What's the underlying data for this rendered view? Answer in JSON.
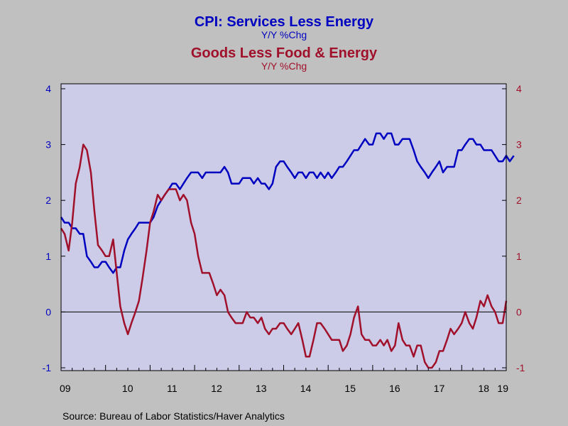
{
  "chart_data": {
    "type": "line",
    "title": "CPI: Services Less Energy",
    "subtitle": "Y/Y %Chg",
    "title2": "Goods Less Food & Energy",
    "subtitle2": "Y/Y %Chg",
    "x_tick_labels": [
      "09",
      "10",
      "11",
      "12",
      "13",
      "14",
      "15",
      "16",
      "17",
      "18",
      "19"
    ],
    "x_range": [
      2009.0,
      2019.0
    ],
    "ylim_left": [
      -1,
      4
    ],
    "ylim_right": [
      -1,
      4
    ],
    "y_ticks": [
      -1,
      0,
      1,
      2,
      3,
      4
    ],
    "zero_line": true,
    "grid": false,
    "colors": {
      "services": "#0000c0",
      "goods": "#a0102a",
      "background": "#c0c0c0",
      "plot_background": "#cccce8"
    },
    "series": [
      {
        "name": "CPI: Services Less Energy",
        "axis": "left",
        "points": [
          [
            2009.0,
            1.7
          ],
          [
            2009.08,
            1.6
          ],
          [
            2009.17,
            1.6
          ],
          [
            2009.25,
            1.5
          ],
          [
            2009.33,
            1.5
          ],
          [
            2009.42,
            1.4
          ],
          [
            2009.5,
            1.4
          ],
          [
            2009.58,
            1.0
          ],
          [
            2009.67,
            0.9
          ],
          [
            2009.75,
            0.8
          ],
          [
            2009.83,
            0.8
          ],
          [
            2009.92,
            0.9
          ],
          [
            2010.0,
            0.9
          ],
          [
            2010.08,
            0.8
          ],
          [
            2010.17,
            0.7
          ],
          [
            2010.25,
            0.8
          ],
          [
            2010.33,
            0.8
          ],
          [
            2010.42,
            1.1
          ],
          [
            2010.5,
            1.3
          ],
          [
            2010.58,
            1.4
          ],
          [
            2010.67,
            1.5
          ],
          [
            2010.75,
            1.6
          ],
          [
            2010.83,
            1.6
          ],
          [
            2010.92,
            1.6
          ],
          [
            2011.0,
            1.6
          ],
          [
            2011.08,
            1.7
          ],
          [
            2011.17,
            1.9
          ],
          [
            2011.25,
            2.0
          ],
          [
            2011.33,
            2.1
          ],
          [
            2011.42,
            2.2
          ],
          [
            2011.5,
            2.3
          ],
          [
            2011.58,
            2.3
          ],
          [
            2011.67,
            2.2
          ],
          [
            2011.75,
            2.3
          ],
          [
            2011.83,
            2.4
          ],
          [
            2011.92,
            2.5
          ],
          [
            2012.0,
            2.5
          ],
          [
            2012.08,
            2.5
          ],
          [
            2012.17,
            2.4
          ],
          [
            2012.25,
            2.5
          ],
          [
            2012.33,
            2.5
          ],
          [
            2012.42,
            2.5
          ],
          [
            2012.5,
            2.5
          ],
          [
            2012.58,
            2.5
          ],
          [
            2012.67,
            2.6
          ],
          [
            2012.75,
            2.5
          ],
          [
            2012.83,
            2.3
          ],
          [
            2012.92,
            2.3
          ],
          [
            2013.0,
            2.3
          ],
          [
            2013.08,
            2.4
          ],
          [
            2013.17,
            2.4
          ],
          [
            2013.25,
            2.4
          ],
          [
            2013.33,
            2.3
          ],
          [
            2013.42,
            2.4
          ],
          [
            2013.5,
            2.3
          ],
          [
            2013.58,
            2.3
          ],
          [
            2013.67,
            2.2
          ],
          [
            2013.75,
            2.3
          ],
          [
            2013.83,
            2.6
          ],
          [
            2013.92,
            2.7
          ],
          [
            2014.0,
            2.7
          ],
          [
            2014.08,
            2.6
          ],
          [
            2014.17,
            2.5
          ],
          [
            2014.25,
            2.4
          ],
          [
            2014.33,
            2.5
          ],
          [
            2014.42,
            2.5
          ],
          [
            2014.5,
            2.4
          ],
          [
            2014.58,
            2.5
          ],
          [
            2014.67,
            2.5
          ],
          [
            2014.75,
            2.4
          ],
          [
            2014.83,
            2.5
          ],
          [
            2014.92,
            2.4
          ],
          [
            2015.0,
            2.5
          ],
          [
            2015.08,
            2.4
          ],
          [
            2015.17,
            2.5
          ],
          [
            2015.25,
            2.6
          ],
          [
            2015.33,
            2.6
          ],
          [
            2015.42,
            2.7
          ],
          [
            2015.5,
            2.8
          ],
          [
            2015.58,
            2.9
          ],
          [
            2015.67,
            2.9
          ],
          [
            2015.75,
            3.0
          ],
          [
            2015.83,
            3.1
          ],
          [
            2015.92,
            3.0
          ],
          [
            2016.0,
            3.0
          ],
          [
            2016.08,
            3.2
          ],
          [
            2016.17,
            3.2
          ],
          [
            2016.25,
            3.1
          ],
          [
            2016.33,
            3.2
          ],
          [
            2016.42,
            3.2
          ],
          [
            2016.5,
            3.0
          ],
          [
            2016.58,
            3.0
          ],
          [
            2016.67,
            3.1
          ],
          [
            2016.75,
            3.1
          ],
          [
            2016.83,
            3.1
          ],
          [
            2016.92,
            2.9
          ],
          [
            2017.0,
            2.7
          ],
          [
            2017.08,
            2.6
          ],
          [
            2017.17,
            2.5
          ],
          [
            2017.25,
            2.4
          ],
          [
            2017.33,
            2.5
          ],
          [
            2017.42,
            2.6
          ],
          [
            2017.5,
            2.7
          ],
          [
            2017.58,
            2.5
          ],
          [
            2017.67,
            2.6
          ],
          [
            2017.75,
            2.6
          ],
          [
            2017.83,
            2.6
          ],
          [
            2017.92,
            2.9
          ],
          [
            2018.0,
            2.9
          ],
          [
            2018.08,
            3.0
          ],
          [
            2018.17,
            3.1
          ],
          [
            2018.25,
            3.1
          ],
          [
            2018.33,
            3.0
          ],
          [
            2018.42,
            3.0
          ],
          [
            2018.5,
            2.9
          ],
          [
            2018.58,
            2.9
          ],
          [
            2018.67,
            2.9
          ],
          [
            2018.75,
            2.8
          ],
          [
            2018.83,
            2.7
          ],
          [
            2018.92,
            2.7
          ],
          [
            2019.0,
            2.8
          ],
          [
            2019.08,
            2.7
          ],
          [
            2019.17,
            2.8
          ]
        ]
      },
      {
        "name": "Goods Less Food & Energy",
        "axis": "right",
        "points": [
          [
            2009.0,
            1.5
          ],
          [
            2009.08,
            1.4
          ],
          [
            2009.17,
            1.1
          ],
          [
            2009.25,
            1.6
          ],
          [
            2009.33,
            2.3
          ],
          [
            2009.42,
            2.6
          ],
          [
            2009.5,
            3.0
          ],
          [
            2009.58,
            2.9
          ],
          [
            2009.67,
            2.5
          ],
          [
            2009.75,
            1.8
          ],
          [
            2009.83,
            1.2
          ],
          [
            2009.92,
            1.1
          ],
          [
            2010.0,
            1.0
          ],
          [
            2010.08,
            1.0
          ],
          [
            2010.17,
            1.3
          ],
          [
            2010.25,
            0.7
          ],
          [
            2010.33,
            0.1
          ],
          [
            2010.42,
            -0.2
          ],
          [
            2010.5,
            -0.4
          ],
          [
            2010.58,
            -0.2
          ],
          [
            2010.67,
            0.0
          ],
          [
            2010.75,
            0.2
          ],
          [
            2010.83,
            0.6
          ],
          [
            2010.92,
            1.1
          ],
          [
            2011.0,
            1.6
          ],
          [
            2011.08,
            1.8
          ],
          [
            2011.17,
            2.1
          ],
          [
            2011.25,
            2.0
          ],
          [
            2011.33,
            2.1
          ],
          [
            2011.42,
            2.2
          ],
          [
            2011.5,
            2.2
          ],
          [
            2011.58,
            2.2
          ],
          [
            2011.67,
            2.0
          ],
          [
            2011.75,
            2.1
          ],
          [
            2011.83,
            2.0
          ],
          [
            2011.92,
            1.6
          ],
          [
            2012.0,
            1.4
          ],
          [
            2012.08,
            1.0
          ],
          [
            2012.17,
            0.7
          ],
          [
            2012.25,
            0.7
          ],
          [
            2012.33,
            0.7
          ],
          [
            2012.42,
            0.5
          ],
          [
            2012.5,
            0.3
          ],
          [
            2012.58,
            0.4
          ],
          [
            2012.67,
            0.3
          ],
          [
            2012.75,
            0.0
          ],
          [
            2012.83,
            -0.1
          ],
          [
            2012.92,
            -0.2
          ],
          [
            2013.0,
            -0.2
          ],
          [
            2013.08,
            -0.2
          ],
          [
            2013.17,
            0.0
          ],
          [
            2013.25,
            -0.1
          ],
          [
            2013.33,
            -0.1
          ],
          [
            2013.42,
            -0.2
          ],
          [
            2013.5,
            -0.1
          ],
          [
            2013.58,
            -0.3
          ],
          [
            2013.67,
            -0.4
          ],
          [
            2013.75,
            -0.3
          ],
          [
            2013.83,
            -0.3
          ],
          [
            2013.92,
            -0.2
          ],
          [
            2014.0,
            -0.2
          ],
          [
            2014.08,
            -0.3
          ],
          [
            2014.17,
            -0.4
          ],
          [
            2014.25,
            -0.3
          ],
          [
            2014.33,
            -0.2
          ],
          [
            2014.42,
            -0.5
          ],
          [
            2014.5,
            -0.8
          ],
          [
            2014.58,
            -0.8
          ],
          [
            2014.67,
            -0.5
          ],
          [
            2014.75,
            -0.2
          ],
          [
            2014.83,
            -0.2
          ],
          [
            2014.92,
            -0.3
          ],
          [
            2015.0,
            -0.4
          ],
          [
            2015.08,
            -0.5
          ],
          [
            2015.17,
            -0.5
          ],
          [
            2015.25,
            -0.5
          ],
          [
            2015.33,
            -0.7
          ],
          [
            2015.42,
            -0.6
          ],
          [
            2015.5,
            -0.4
          ],
          [
            2015.58,
            -0.1
          ],
          [
            2015.67,
            0.1
          ],
          [
            2015.75,
            -0.4
          ],
          [
            2015.83,
            -0.5
          ],
          [
            2015.92,
            -0.5
          ],
          [
            2016.0,
            -0.6
          ],
          [
            2016.08,
            -0.6
          ],
          [
            2016.17,
            -0.5
          ],
          [
            2016.25,
            -0.6
          ],
          [
            2016.33,
            -0.5
          ],
          [
            2016.42,
            -0.7
          ],
          [
            2016.5,
            -0.6
          ],
          [
            2016.58,
            -0.2
          ],
          [
            2016.67,
            -0.5
          ],
          [
            2016.75,
            -0.6
          ],
          [
            2016.83,
            -0.6
          ],
          [
            2016.92,
            -0.8
          ],
          [
            2017.0,
            -0.6
          ],
          [
            2017.08,
            -0.6
          ],
          [
            2017.17,
            -0.9
          ],
          [
            2017.25,
            -1.0
          ],
          [
            2017.33,
            -1.0
          ],
          [
            2017.42,
            -0.9
          ],
          [
            2017.5,
            -0.7
          ],
          [
            2017.58,
            -0.7
          ],
          [
            2017.67,
            -0.5
          ],
          [
            2017.75,
            -0.3
          ],
          [
            2017.83,
            -0.4
          ],
          [
            2017.92,
            -0.3
          ],
          [
            2018.0,
            -0.2
          ],
          [
            2018.08,
            0.0
          ],
          [
            2018.17,
            -0.2
          ],
          [
            2018.25,
            -0.3
          ],
          [
            2018.33,
            -0.1
          ],
          [
            2018.42,
            0.2
          ],
          [
            2018.5,
            0.1
          ],
          [
            2018.58,
            0.3
          ],
          [
            2018.67,
            0.1
          ],
          [
            2018.75,
            0.0
          ],
          [
            2018.83,
            -0.2
          ],
          [
            2018.92,
            -0.2
          ],
          [
            2019.0,
            0.2
          ]
        ]
      }
    ]
  },
  "source_text": "Source:  Bureau of Labor Statistics/Haver Analytics"
}
